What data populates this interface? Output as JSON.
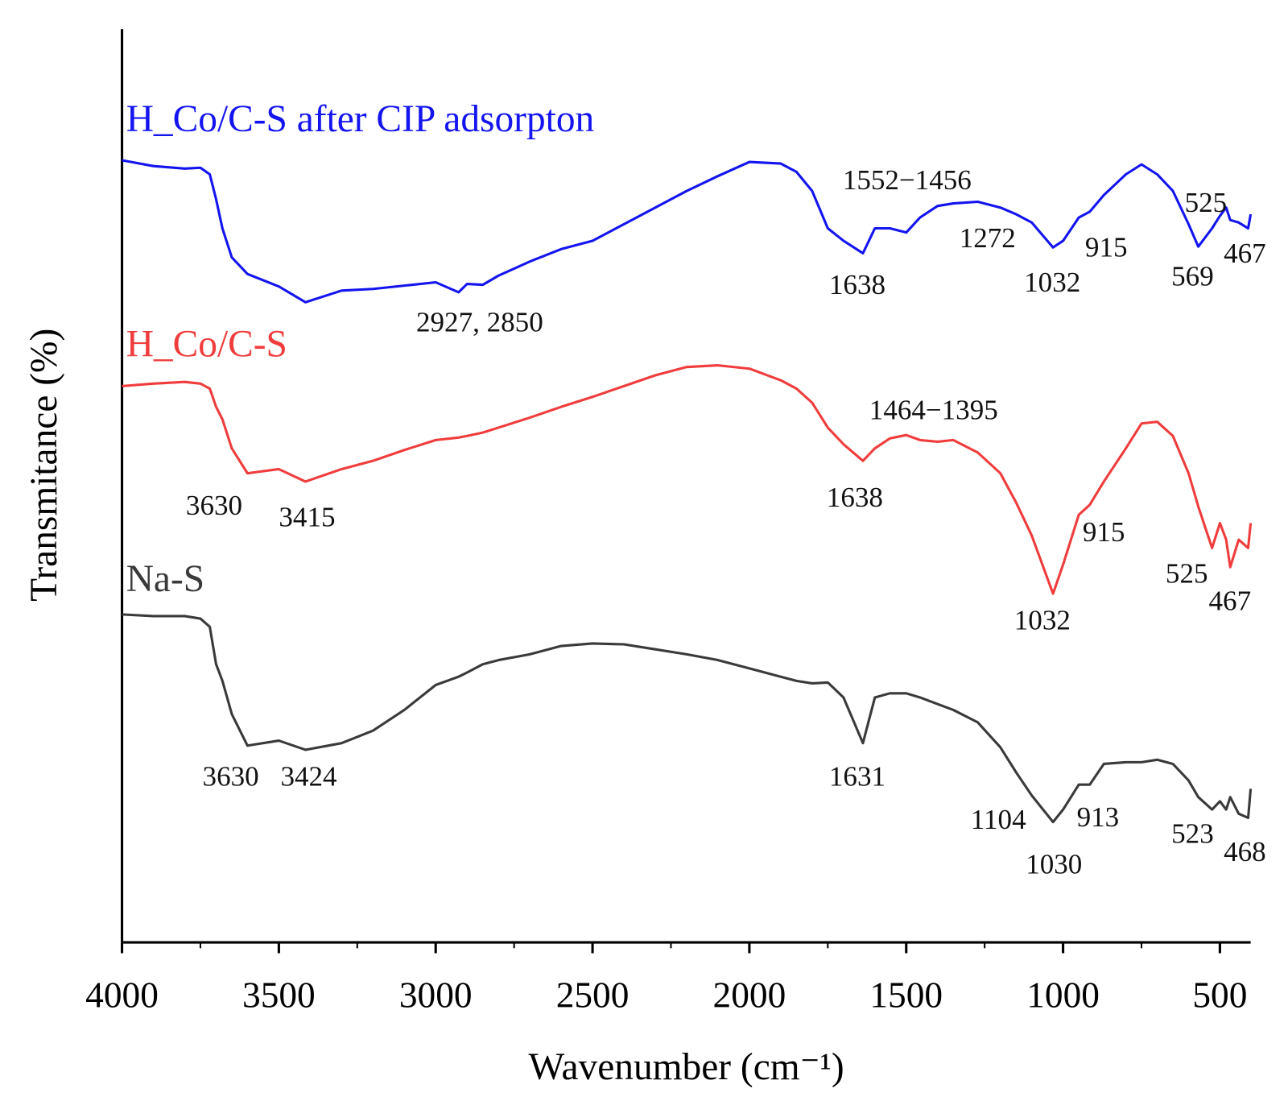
{
  "chart_data": {
    "type": "line",
    "xlabel": "Wavenumber (cm⁻¹)",
    "ylabel": "Transmitance (%)",
    "xlim": [
      4000,
      402
    ],
    "ylim": [
      0,
      110
    ],
    "xticks": [
      4000,
      3500,
      3000,
      2500,
      2000,
      1500,
      1000,
      500
    ],
    "xticks_minor": [
      3750,
      3250,
      2750,
      2250,
      1750,
      1250,
      750
    ],
    "x": [
      4000,
      3900,
      3800,
      3750,
      3720,
      3700,
      3680,
      3650,
      3600,
      3500,
      3415,
      3300,
      3200,
      3100,
      3000,
      2927,
      2900,
      2850,
      2800,
      2700,
      2600,
      2500,
      2400,
      2300,
      2200,
      2100,
      2000,
      1900,
      1850,
      1800,
      1750,
      1700,
      1638,
      1600,
      1552,
      1500,
      1456,
      1400,
      1350,
      1272,
      1200,
      1150,
      1100,
      1032,
      1000,
      950,
      915,
      870,
      800,
      750,
      700,
      650,
      600,
      569,
      525,
      500,
      480,
      467,
      440,
      410,
      402
    ],
    "series": [
      {
        "name": "H_Co/C-S after CIP adsorpton",
        "color": "#1414f0",
        "values": [
          94.2,
          93.5,
          93.2,
          93.3,
          92.5,
          89.5,
          86,
          82.5,
          80.5,
          79,
          77.1,
          78.5,
          78.7,
          79.1,
          79.5,
          78.3,
          79.3,
          79.2,
          80.3,
          82,
          83.5,
          84.5,
          86.5,
          88.5,
          90.5,
          92.3,
          94,
          93.8,
          92.8,
          90.5,
          86,
          84.5,
          83,
          86,
          86,
          85.5,
          87.3,
          88.7,
          89,
          89.2,
          88.5,
          87.7,
          86.7,
          83.7,
          84.5,
          87.3,
          88,
          90,
          92.5,
          93.7,
          92.5,
          90.5,
          86.5,
          83.8,
          86,
          87.5,
          88.5,
          87,
          86.7,
          86,
          87.7
        ],
        "annotations": [
          "1552−1456",
          "1272",
          "1032",
          "915",
          "525",
          "569",
          "467",
          "1638",
          "2927, 2850"
        ]
      },
      {
        "name": "H_Co/C-S",
        "color": "#f03c3c",
        "values": [
          67,
          67.3,
          67.5,
          67.3,
          66.7,
          64.5,
          63,
          59.5,
          56.5,
          57,
          55.5,
          57,
          58,
          59.3,
          60.5,
          60.8,
          61,
          61.4,
          62,
          63.2,
          64.5,
          65.7,
          67,
          68.3,
          69.3,
          69.5,
          69.1,
          67.7,
          66.7,
          65,
          62,
          60,
          58,
          59.5,
          60.7,
          61.1,
          60.5,
          60.3,
          60.5,
          59,
          56.5,
          53,
          49,
          42,
          45.5,
          51.5,
          52.7,
          55.5,
          59.5,
          62.5,
          62.7,
          61,
          56.5,
          52.5,
          47.5,
          50.5,
          48.5,
          45.2,
          48.5,
          47.5,
          50.5
        ],
        "annotations": [
          "1464−1395",
          "3630",
          "3415",
          "1638",
          "915",
          "1032",
          "525",
          "467"
        ]
      },
      {
        "name": "Na-S",
        "color": "#3a3a3a",
        "values": [
          39.5,
          39.3,
          39.3,
          39,
          38,
          33.5,
          31.5,
          27.5,
          23.7,
          24.3,
          23.2,
          24,
          25.5,
          28,
          31,
          32,
          32.5,
          33.5,
          34,
          34.7,
          35.7,
          36,
          35.9,
          35.3,
          34.7,
          34,
          33,
          32,
          31.5,
          31.2,
          31.3,
          29.5,
          24,
          29.5,
          30,
          30,
          29.5,
          28.7,
          28,
          26.5,
          23.5,
          20.5,
          17.7,
          14.5,
          16,
          19,
          19,
          21.5,
          21.7,
          21.7,
          22,
          21.5,
          19.5,
          17.5,
          16,
          17,
          16,
          17.5,
          15.5,
          15,
          18.5
        ],
        "annotations": [
          "3630",
          "3424",
          "1631",
          "1104",
          "913",
          "1030",
          "523",
          "468"
        ]
      }
    ]
  }
}
